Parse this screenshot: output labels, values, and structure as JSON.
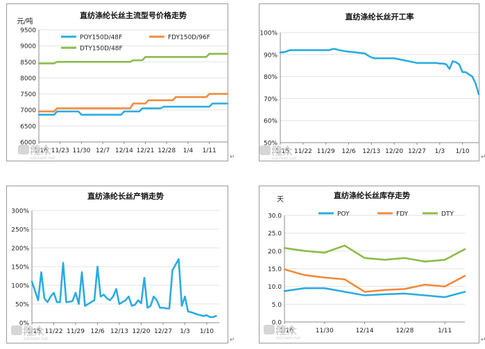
{
  "chart_data": [
    {
      "type": "line",
      "title": "直纺涤纶长丝主流型号价格走势",
      "ylabel": "元/吨",
      "ylim": [
        6000,
        9500
      ],
      "yticks": [
        6000,
        6500,
        7000,
        7500,
        8000,
        8500,
        9000,
        9500
      ],
      "xticks": [
        "11/16",
        "11/23",
        "11/30",
        "12/7",
        "12/14",
        "12/21",
        "12/28",
        "1/4",
        "1/11"
      ],
      "xlim": [
        0,
        62
      ],
      "legend": "top-left",
      "series": [
        {
          "name": "POY150D/48F",
          "color": "#2aabe2",
          "x": [
            0,
            5,
            6,
            13,
            14,
            27,
            28,
            33,
            34,
            40,
            41,
            49,
            50,
            56,
            57,
            62
          ],
          "values": [
            6850,
            6850,
            6950,
            6950,
            6850,
            6850,
            6950,
            6950,
            7050,
            7050,
            7100,
            7100,
            7100,
            7100,
            7200,
            7200
          ]
        },
        {
          "name": "FDY150D/96F",
          "color": "#f08b3d",
          "x": [
            0,
            5,
            6,
            13,
            14,
            20,
            21,
            27,
            28,
            30,
            31,
            35,
            36,
            44,
            45,
            55,
            56,
            62
          ],
          "values": [
            6950,
            6950,
            7050,
            7050,
            7050,
            7050,
            7050,
            7050,
            7050,
            7050,
            7200,
            7200,
            7300,
            7300,
            7400,
            7400,
            7500,
            7500
          ]
        },
        {
          "name": "DTY150D/48F",
          "color": "#8dbb4a",
          "x": [
            0,
            5,
            6,
            30,
            31,
            34,
            35,
            55,
            56,
            62
          ],
          "values": [
            8450,
            8450,
            8500,
            8500,
            8550,
            8550,
            8650,
            8650,
            8750,
            8750
          ]
        }
      ]
    },
    {
      "type": "line",
      "title": "直纺涤纶长丝开工率",
      "ylim": [
        50,
        100
      ],
      "yticks": [
        "50%",
        "60%",
        "70%",
        "80%",
        "90%",
        "100%"
      ],
      "xticks": [
        "11/15",
        "11/22",
        "11/29",
        "12/6",
        "12/13",
        "12/20",
        "12/27",
        "1/3",
        "1/10"
      ],
      "xlim": [
        0,
        61
      ],
      "series": [
        {
          "color": "#2aabe2",
          "x": [
            0,
            1,
            2,
            3,
            4,
            9,
            10,
            15,
            16,
            17,
            18,
            19,
            20,
            23,
            26,
            27,
            28,
            29,
            30,
            32,
            33,
            34,
            35,
            41,
            42,
            47,
            48,
            49,
            50,
            51,
            52,
            53,
            54,
            55,
            56,
            57,
            58,
            59,
            60,
            61
          ],
          "values": [
            91,
            91,
            91.5,
            92,
            92,
            92,
            92,
            92,
            92.5,
            92.5,
            92,
            91.8,
            91.5,
            91,
            90.5,
            89.5,
            88.7,
            88.3,
            88.3,
            88.3,
            88.3,
            88.3,
            88.3,
            86.5,
            86.2,
            86.2,
            86.2,
            85.9,
            85.9,
            85.6,
            83.5,
            87,
            86.5,
            85.5,
            82,
            82,
            81,
            80,
            77,
            72
          ]
        }
      ]
    },
    {
      "type": "line",
      "title": "直纺涤纶长丝产销走势",
      "ylim": [
        0,
        300
      ],
      "yticks": [
        "0%",
        "50%",
        "100%",
        "150%",
        "200%",
        "250%",
        "300%"
      ],
      "xticks": [
        "11/15",
        "11/22",
        "11/29",
        "12/6",
        "12/13",
        "12/20",
        "12/27",
        "1/3",
        "1/10"
      ],
      "xlim": [
        0,
        60
      ],
      "series": [
        {
          "color": "#2aabe2",
          "x": [
            0,
            1,
            2,
            3,
            4,
            5,
            6,
            7,
            8,
            9,
            10,
            11,
            12,
            13,
            14,
            15,
            16,
            17,
            18,
            19,
            20,
            21,
            22,
            23,
            24,
            25,
            26,
            27,
            28,
            29,
            30,
            31,
            32,
            33,
            34,
            35,
            36,
            37,
            38,
            39,
            40,
            41,
            42,
            43,
            44,
            45,
            46,
            47,
            48,
            49,
            50,
            51,
            52,
            53,
            54,
            55,
            56,
            57,
            58,
            59
          ],
          "values": [
            110,
            85,
            60,
            135,
            65,
            55,
            70,
            80,
            55,
            55,
            160,
            55,
            56,
            58,
            80,
            50,
            135,
            45,
            50,
            55,
            60,
            150,
            70,
            75,
            65,
            60,
            70,
            90,
            50,
            55,
            60,
            70,
            45,
            48,
            60,
            52,
            120,
            40,
            45,
            70,
            60,
            40,
            40,
            38,
            38,
            140,
            155,
            170,
            45,
            70,
            30,
            28,
            25,
            22,
            20,
            18,
            20,
            15,
            15,
            18
          ]
        }
      ]
    },
    {
      "type": "line",
      "title": "直纺涤纶长丝库存走势",
      "ylabel": "天",
      "ylim": [
        0,
        30
      ],
      "yticks": [
        "0.0",
        "5.0",
        "10.0",
        "15.0",
        "20.0",
        "25.0",
        "30.0"
      ],
      "xticks": [
        "11/16",
        "11/30",
        "12/14",
        "12/28",
        "1/11"
      ],
      "xlim": [
        0,
        9
      ],
      "legend": "top",
      "series": [
        {
          "name": "POY",
          "color": "#2aabe2",
          "x": [
            0,
            1,
            2,
            3,
            4,
            5,
            6,
            7,
            8,
            9
          ],
          "values": [
            8.7,
            9.5,
            9.5,
            8.5,
            7.5,
            7.8,
            8,
            7.5,
            7,
            8.5
          ]
        },
        {
          "name": "FDY",
          "color": "#f08b3d",
          "x": [
            0,
            1,
            2,
            3,
            4,
            5,
            6,
            7,
            8,
            9
          ],
          "values": [
            14.8,
            13.2,
            12.5,
            12,
            8.5,
            9,
            9.3,
            10.5,
            10,
            13
          ]
        },
        {
          "name": "DTY",
          "color": "#8dbb4a",
          "x": [
            0,
            1,
            2,
            3,
            4,
            5,
            6,
            7,
            8,
            9
          ],
          "values": [
            20.8,
            20,
            19.5,
            21.5,
            18,
            17.5,
            18,
            17,
            17.5,
            20.5
          ]
        }
      ]
    }
  ],
  "watermark": {
    "brand": "隆众",
    "site": "oilchem.net"
  }
}
